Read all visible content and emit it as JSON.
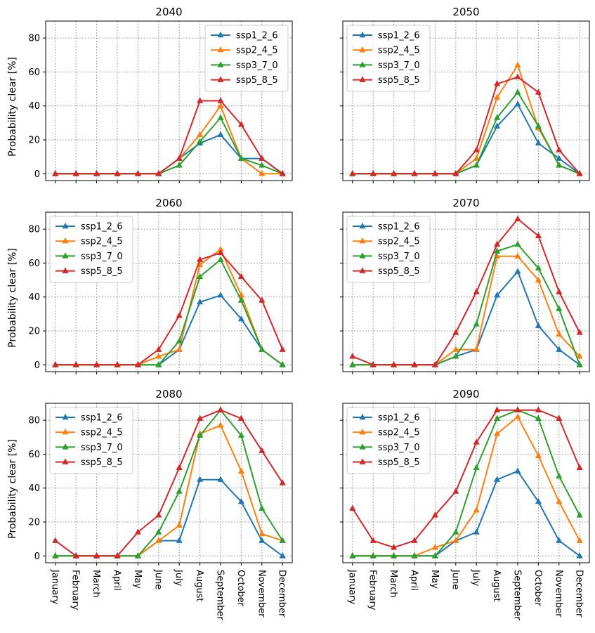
{
  "figure": {
    "ylabel": "Probability clear [%]",
    "months": [
      "January",
      "February",
      "March",
      "April",
      "May",
      "June",
      "July",
      "August",
      "September",
      "October",
      "November",
      "December"
    ],
    "yticks": [
      0,
      20,
      40,
      60,
      80
    ],
    "ylim": [
      -4,
      90
    ],
    "series_names": [
      "ssp1_2_6",
      "ssp2_4_5",
      "ssp3_7_0",
      "ssp5_8_5"
    ],
    "series_colors": [
      "#1f77b4",
      "#ff7f0e",
      "#2ca02c",
      "#d62728"
    ]
  },
  "chart_data": [
    {
      "type": "line",
      "title": "2040",
      "legend_position": "top-right",
      "series": [
        {
          "name": "ssp1_2_6",
          "values": [
            0,
            0,
            0,
            0,
            0,
            0,
            9,
            18,
            23,
            9,
            9,
            0
          ]
        },
        {
          "name": "ssp2_4_5",
          "values": [
            0,
            0,
            0,
            0,
            0,
            0,
            9,
            23,
            40,
            9,
            0,
            0
          ]
        },
        {
          "name": "ssp3_7_0",
          "values": [
            0,
            0,
            0,
            0,
            0,
            0,
            5,
            19,
            33,
            9,
            5,
            0
          ]
        },
        {
          "name": "ssp5_8_5",
          "values": [
            0,
            0,
            0,
            0,
            0,
            0,
            9,
            43,
            43,
            29,
            9,
            0
          ]
        }
      ]
    },
    {
      "type": "line",
      "title": "2050",
      "legend_position": "top-left",
      "series": [
        {
          "name": "ssp1_2_6",
          "values": [
            0,
            0,
            0,
            0,
            0,
            0,
            5,
            28,
            41,
            18,
            9,
            0
          ]
        },
        {
          "name": "ssp2_4_5",
          "values": [
            0,
            0,
            0,
            0,
            0,
            0,
            9,
            45,
            64,
            27,
            5,
            0
          ]
        },
        {
          "name": "ssp3_7_0",
          "values": [
            0,
            0,
            0,
            0,
            0,
            0,
            5,
            33,
            48,
            28,
            5,
            0
          ]
        },
        {
          "name": "ssp5_8_5",
          "values": [
            0,
            0,
            0,
            0,
            0,
            0,
            14,
            53,
            57,
            48,
            14,
            0
          ]
        }
      ]
    },
    {
      "type": "line",
      "title": "2060",
      "legend_position": "top-left",
      "series": [
        {
          "name": "ssp1_2_6",
          "values": [
            0,
            0,
            0,
            0,
            0,
            0,
            9,
            37,
            41,
            27,
            9,
            0
          ]
        },
        {
          "name": "ssp2_4_5",
          "values": [
            0,
            0,
            0,
            0,
            0,
            5,
            9,
            59,
            68,
            41,
            9,
            0
          ]
        },
        {
          "name": "ssp3_7_0",
          "values": [
            0,
            0,
            0,
            0,
            0,
            0,
            14,
            52,
            62,
            38,
            9,
            0
          ]
        },
        {
          "name": "ssp5_8_5",
          "values": [
            0,
            0,
            0,
            0,
            0,
            9,
            29,
            62,
            66,
            52,
            38,
            9
          ]
        }
      ]
    },
    {
      "type": "line",
      "title": "2070",
      "legend_position": "top-left",
      "series": [
        {
          "name": "ssp1_2_6",
          "values": [
            0,
            0,
            0,
            0,
            0,
            5,
            9,
            41,
            55,
            23,
            9,
            0
          ]
        },
        {
          "name": "ssp2_4_5",
          "values": [
            0,
            0,
            0,
            0,
            0,
            9,
            9,
            64,
            64,
            50,
            18,
            5
          ]
        },
        {
          "name": "ssp3_7_0",
          "values": [
            0,
            0,
            0,
            0,
            0,
            5,
            24,
            67,
            71,
            57,
            33,
            0
          ]
        },
        {
          "name": "ssp5_8_5",
          "values": [
            5,
            0,
            0,
            0,
            0,
            19,
            43,
            71,
            86,
            76,
            43,
            19
          ]
        }
      ]
    },
    {
      "type": "line",
      "title": "2080",
      "legend_position": "top-left",
      "series": [
        {
          "name": "ssp1_2_6",
          "values": [
            0,
            0,
            0,
            0,
            0,
            9,
            9,
            45,
            45,
            32,
            9,
            0
          ]
        },
        {
          "name": "ssp2_4_5",
          "values": [
            0,
            0,
            0,
            0,
            0,
            9,
            18,
            72,
            77,
            50,
            13,
            9
          ]
        },
        {
          "name": "ssp3_7_0",
          "values": [
            0,
            0,
            0,
            0,
            0,
            14,
            38,
            71,
            86,
            71,
            28,
            9
          ]
        },
        {
          "name": "ssp5_8_5",
          "values": [
            9,
            0,
            0,
            0,
            14,
            24,
            52,
            81,
            86,
            81,
            62,
            43
          ]
        }
      ]
    },
    {
      "type": "line",
      "title": "2090",
      "legend_position": "top-left",
      "series": [
        {
          "name": "ssp1_2_6",
          "values": [
            0,
            0,
            0,
            0,
            0,
            9,
            14,
            45,
            50,
            32,
            9,
            0
          ]
        },
        {
          "name": "ssp2_4_5",
          "values": [
            0,
            0,
            0,
            0,
            5,
            9,
            27,
            72,
            82,
            59,
            32,
            9
          ]
        },
        {
          "name": "ssp3_7_0",
          "values": [
            0,
            0,
            0,
            0,
            0,
            14,
            52,
            81,
            86,
            81,
            47,
            24
          ]
        },
        {
          "name": "ssp5_8_5",
          "values": [
            28,
            9,
            5,
            9,
            24,
            38,
            67,
            86,
            86,
            86,
            81,
            52
          ]
        }
      ]
    }
  ]
}
